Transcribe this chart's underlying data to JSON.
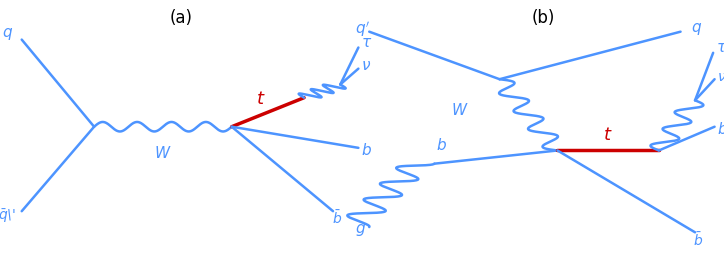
{
  "line_color": "#4d94ff",
  "red_color": "#cc0000",
  "background": "#ffffff",
  "fig_width": 7.24,
  "fig_height": 2.64,
  "dpi": 100,
  "label_a": "(a)",
  "label_b": "(b)"
}
